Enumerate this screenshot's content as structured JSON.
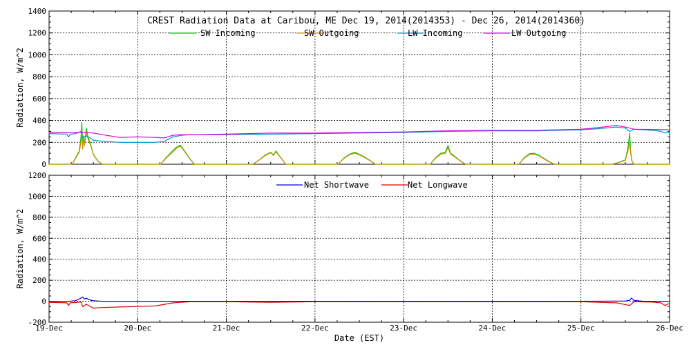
{
  "chart_data": [
    {
      "type": "line",
      "title": "CREST Radiation Data at Caribou, ME   Dec 19, 2014(2014353) - Dec 26, 2014(2014360)",
      "ylabel": "Radiation, W/m^2",
      "xlabel": "",
      "ylim": [
        0,
        1400
      ],
      "yticks": [
        0,
        200,
        400,
        600,
        800,
        1000,
        1200,
        1400
      ],
      "xlim": [
        0,
        7
      ],
      "x_tick_labels": [
        "19-Dec",
        "20-Dec",
        "21-Dec",
        "22-Dec",
        "23-Dec",
        "24-Dec",
        "25-Dec",
        "26-Dec"
      ],
      "grid": true,
      "legend_position": "top",
      "series": [
        {
          "name": "SW Incoming",
          "color": "#00c800",
          "x": [
            0.0,
            0.22,
            0.26,
            0.3,
            0.34,
            0.36,
            0.37,
            0.38,
            0.39,
            0.4,
            0.42,
            0.44,
            0.47,
            0.5,
            0.55,
            0.6,
            1.0,
            1.26,
            1.32,
            1.38,
            1.43,
            1.48,
            1.53,
            1.58,
            1.64,
            2.0,
            2.3,
            2.37,
            2.44,
            2.5,
            2.53,
            2.56,
            2.62,
            2.67,
            3.0,
            3.26,
            3.33,
            3.4,
            3.45,
            3.5,
            3.55,
            3.62,
            3.68,
            4.0,
            4.3,
            4.36,
            4.42,
            4.47,
            4.5,
            4.53,
            4.58,
            4.64,
            4.7,
            5.0,
            5.3,
            5.36,
            5.42,
            5.47,
            5.52,
            5.58,
            5.64,
            5.7,
            6.0,
            6.35,
            6.4,
            6.45,
            6.5,
            6.53,
            6.55,
            6.56,
            6.57,
            6.58,
            6.6,
            6.65,
            6.7,
            7.0
          ],
          "y": [
            0,
            0,
            0,
            60,
            120,
            250,
            380,
            150,
            260,
            180,
            330,
            250,
            180,
            90,
            30,
            0,
            0,
            0,
            60,
            110,
            150,
            175,
            120,
            60,
            0,
            0,
            0,
            40,
            85,
            110,
            85,
            120,
            55,
            0,
            0,
            0,
            60,
            95,
            110,
            90,
            70,
            35,
            0,
            0,
            0,
            60,
            100,
            110,
            170,
            100,
            70,
            30,
            0,
            0,
            0,
            60,
            95,
            100,
            85,
            55,
            25,
            0,
            0,
            0,
            10,
            25,
            40,
            150,
            280,
            120,
            60,
            20,
            0,
            0,
            0,
            0
          ]
        },
        {
          "name": "SW Outgoing",
          "color": "#d09000",
          "x": [
            0.0,
            0.22,
            0.26,
            0.3,
            0.34,
            0.36,
            0.37,
            0.38,
            0.39,
            0.4,
            0.42,
            0.44,
            0.47,
            0.5,
            0.55,
            0.6,
            1.0,
            1.26,
            1.32,
            1.38,
            1.43,
            1.48,
            1.53,
            1.58,
            1.64,
            2.0,
            2.3,
            2.37,
            2.44,
            2.5,
            2.53,
            2.56,
            2.62,
            2.67,
            3.0,
            3.26,
            3.33,
            3.4,
            3.45,
            3.5,
            3.55,
            3.62,
            3.68,
            4.0,
            4.3,
            4.36,
            4.42,
            4.47,
            4.5,
            4.53,
            4.58,
            4.64,
            4.7,
            5.0,
            5.3,
            5.36,
            5.42,
            5.47,
            5.52,
            5.58,
            5.64,
            5.7,
            6.0,
            6.35,
            6.4,
            6.45,
            6.5,
            6.53,
            6.55,
            6.56,
            6.57,
            6.58,
            6.6,
            6.65,
            6.7,
            7.0
          ],
          "y": [
            0,
            0,
            0,
            55,
            110,
            200,
            290,
            140,
            240,
            170,
            300,
            230,
            170,
            85,
            28,
            0,
            0,
            0,
            55,
            100,
            140,
            165,
            115,
            55,
            0,
            0,
            0,
            38,
            80,
            105,
            80,
            112,
            52,
            0,
            0,
            0,
            55,
            90,
            100,
            85,
            65,
            32,
            0,
            0,
            0,
            55,
            92,
            100,
            150,
            92,
            65,
            28,
            0,
            0,
            0,
            55,
            88,
            92,
            80,
            50,
            22,
            0,
            0,
            0,
            8,
            22,
            35,
            120,
            200,
            100,
            50,
            18,
            0,
            0,
            0,
            0
          ]
        },
        {
          "name": "LW Incoming",
          "color": "#0096c8",
          "x": [
            0.0,
            0.2,
            0.22,
            0.24,
            0.3,
            0.36,
            0.38,
            0.42,
            0.5,
            0.6,
            0.8,
            1.0,
            1.2,
            1.3,
            1.4,
            1.5,
            1.6,
            2.0,
            2.5,
            3.0,
            3.5,
            4.0,
            4.5,
            5.0,
            5.5,
            6.0,
            6.2,
            6.4,
            6.5,
            6.55,
            6.6,
            6.8,
            6.9,
            6.95,
            7.0
          ],
          "y": [
            280,
            275,
            250,
            275,
            280,
            300,
            240,
            260,
            220,
            210,
            200,
            200,
            200,
            210,
            250,
            265,
            270,
            270,
            275,
            280,
            285,
            290,
            300,
            305,
            305,
            315,
            325,
            340,
            330,
            300,
            320,
            310,
            300,
            285,
            295
          ]
        },
        {
          "name": "LW Outgoing",
          "color": "#dc00dc",
          "x": [
            0.0,
            0.2,
            0.3,
            0.4,
            0.5,
            0.6,
            0.8,
            1.0,
            1.2,
            1.3,
            1.4,
            1.5,
            1.6,
            2.0,
            2.5,
            3.0,
            3.5,
            4.0,
            4.5,
            5.0,
            5.5,
            6.0,
            6.2,
            6.4,
            6.5,
            6.6,
            6.8,
            7.0
          ],
          "y": [
            290,
            290,
            292,
            290,
            285,
            270,
            245,
            250,
            245,
            240,
            265,
            270,
            270,
            275,
            285,
            285,
            290,
            295,
            305,
            310,
            310,
            320,
            335,
            355,
            340,
            320,
            318,
            315
          ]
        }
      ]
    },
    {
      "type": "line",
      "title": "",
      "ylabel": "Radiation, W/m^2",
      "xlabel": "Date (EST)",
      "ylim": [
        -200,
        1200
      ],
      "yticks": [
        -200,
        0,
        200,
        400,
        600,
        800,
        1000,
        1200
      ],
      "xlim": [
        0,
        7
      ],
      "x_tick_labels": [
        "19-Dec",
        "20-Dec",
        "21-Dec",
        "22-Dec",
        "23-Dec",
        "24-Dec",
        "25-Dec",
        "26-Dec"
      ],
      "grid": true,
      "legend_position": "top",
      "series": [
        {
          "name": "Net Shortwave",
          "color": "#0000dc",
          "x": [
            0.0,
            0.22,
            0.3,
            0.36,
            0.38,
            0.4,
            0.42,
            0.44,
            0.47,
            0.5,
            0.6,
            1.0,
            2.0,
            3.0,
            4.0,
            5.0,
            6.0,
            6.5,
            6.55,
            6.57,
            6.6,
            6.7,
            7.0
          ],
          "y": [
            0,
            0,
            5,
            30,
            40,
            20,
            30,
            20,
            10,
            5,
            0,
            0,
            0,
            0,
            0,
            0,
            0,
            2,
            10,
            30,
            8,
            0,
            0
          ]
        },
        {
          "name": "Net Longwave",
          "color": "#dc0000",
          "x": [
            0.0,
            0.2,
            0.22,
            0.24,
            0.3,
            0.36,
            0.38,
            0.42,
            0.5,
            0.6,
            0.8,
            1.0,
            1.2,
            1.3,
            1.4,
            1.6,
            2.0,
            2.5,
            3.0,
            3.5,
            4.0,
            4.5,
            5.0,
            5.5,
            6.0,
            6.4,
            6.55,
            6.6,
            6.8,
            6.9,
            6.95,
            7.0
          ],
          "y": [
            -10,
            -15,
            -40,
            -15,
            -12,
            -8,
            -50,
            -30,
            -65,
            -60,
            -55,
            -50,
            -45,
            -30,
            -15,
            -5,
            -5,
            -10,
            -5,
            -5,
            -5,
            -5,
            -5,
            -5,
            -5,
            -15,
            -40,
            -5,
            -8,
            -15,
            -40,
            -20
          ]
        }
      ]
    }
  ]
}
